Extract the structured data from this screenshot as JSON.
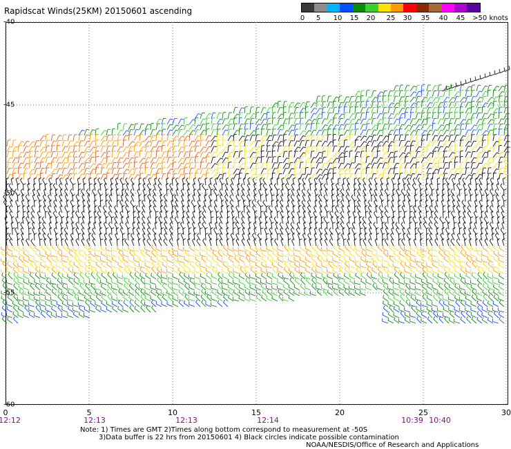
{
  "title": "Rapidscat Winds(25KM) 20150601 ascending",
  "colorbar": {
    "labels": [
      "0",
      "5",
      "10",
      "15",
      "20",
      "25",
      "30",
      "35",
      "40",
      "45",
      ">50 knots"
    ],
    "colors": [
      "#3a3a3a",
      "#8c8c8c",
      "#00b4ff",
      "#0050ff",
      "#0a8a0a",
      "#39d02a",
      "#ffe000",
      "#ff9a00",
      "#ff0000",
      "#8b2a00",
      "#a8693a",
      "#ff00ff",
      "#b000d0",
      "#5a00a0"
    ]
  },
  "map": {
    "y_labels": [
      "-40",
      "-45",
      "-50",
      "-55",
      "-60"
    ],
    "x_labels": [
      "0",
      "5",
      "10",
      "15",
      "20",
      "25",
      "30"
    ],
    "time_labels": [
      "12:12",
      "12:13",
      "12:13",
      "12:14",
      "10:39",
      "10:40"
    ],
    "grid": true,
    "lat_range": [
      -60,
      -40
    ],
    "lon_range": [
      0,
      30
    ]
  },
  "notes": {
    "line1": "Note: 1) Times are GMT 2)Times along bottom correspond to measurement at -50S",
    "line2": "3)Data buffer is 22 hrs from 20150601 4) Black circles indicate possible contamination",
    "line3": "NOAA/NESDIS/Office of Research and Applications"
  }
}
